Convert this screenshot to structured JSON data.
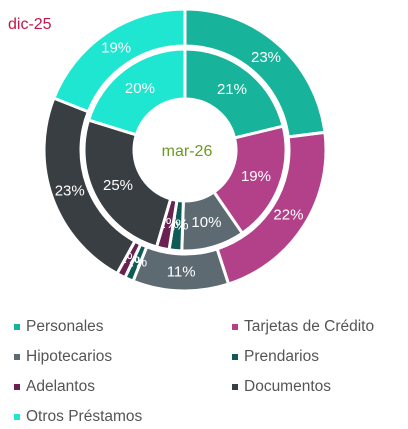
{
  "chart_data": {
    "type": "donut",
    "categories": [
      "Personales",
      "Tarjetas de Crédito",
      "Hipotecarios",
      "Prendarios",
      "Adelantos",
      "Documentos",
      "Otros Préstamos"
    ],
    "colors": [
      "#17b39b",
      "#b3418a",
      "#5e6a72",
      "#0e5c55",
      "#6a2050",
      "#393e43",
      "#1ee6d0"
    ],
    "series": [
      {
        "name": "dic-25",
        "color": "#c0174a",
        "ring": "outer",
        "values": [
          23,
          22,
          11,
          1,
          1,
          23,
          19
        ],
        "value_labels": [
          "23%",
          "22%",
          "11%",
          "1%",
          "1%",
          "23%",
          "19%"
        ]
      },
      {
        "name": "mar-26",
        "color": "#6a9a1f",
        "ring": "inner",
        "values": [
          21,
          19,
          10,
          2,
          2,
          25,
          20
        ],
        "value_labels": [
          "21%",
          "19%",
          "10%",
          "2%",
          "2%",
          "25%",
          "20%"
        ]
      }
    ],
    "legend": "bottom"
  }
}
